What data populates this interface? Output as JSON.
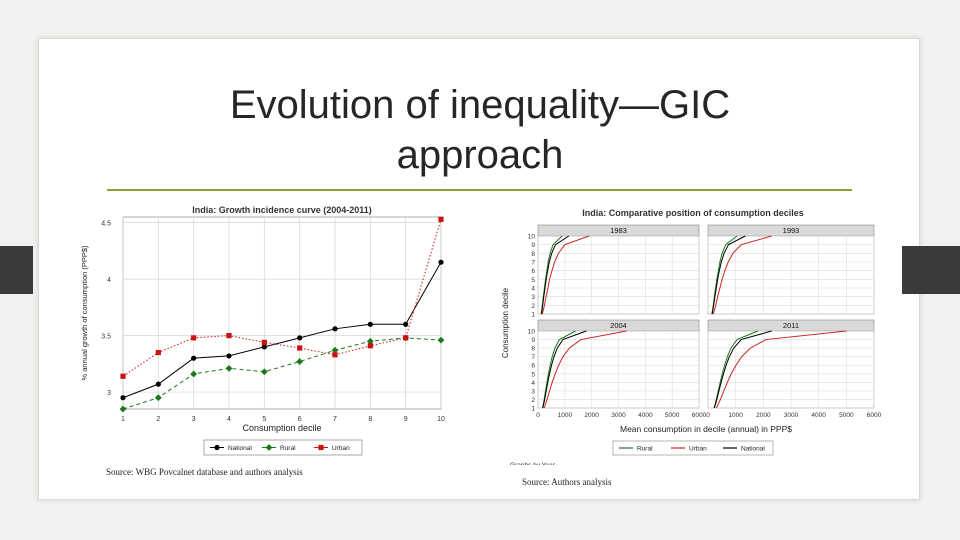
{
  "slide": {
    "title": "Evolution of inequality—GIC approach",
    "accent_color": "#8aa03a",
    "source_left": "Source: WBG Povcalnet database and authors analysis",
    "source_right": "Source: Authors analysis"
  },
  "chart_data": [
    {
      "type": "line",
      "title": "India: Growth incidence curve (2004-2011)",
      "xlabel": "Consumption decile",
      "ylabel": "% annual growth of consumption (PPP$)",
      "x": [
        1,
        2,
        3,
        4,
        5,
        6,
        7,
        8,
        9,
        10
      ],
      "xlim": [
        1,
        10
      ],
      "ylim": [
        2.85,
        4.55
      ],
      "yticks": [
        3,
        3.5,
        4,
        4.5
      ],
      "grid": true,
      "legend_position": "bottom",
      "series": [
        {
          "name": "National",
          "color": "#000000",
          "marker": "circle",
          "dash": "solid",
          "values": [
            2.95,
            3.07,
            3.3,
            3.32,
            3.4,
            3.48,
            3.56,
            3.6,
            3.6,
            4.15
          ]
        },
        {
          "name": "Rural",
          "color": "#1a7a1a",
          "marker": "diamond",
          "dash": "dashed",
          "values": [
            2.85,
            2.95,
            3.16,
            3.21,
            3.18,
            3.27,
            3.37,
            3.45,
            3.48,
            3.46
          ]
        },
        {
          "name": "Urban",
          "color": "#cc1111",
          "marker": "square",
          "dash": "dotted",
          "values": [
            3.14,
            3.35,
            3.48,
            3.5,
            3.44,
            3.39,
            3.33,
            3.41,
            3.48,
            4.53
          ]
        }
      ]
    },
    {
      "type": "line",
      "title": "India: Comparative position of consumption deciles",
      "xlabel": "Mean consumption in decile (annual) in PPP$",
      "ylabel": "Consumption decile",
      "caption": "Graphs by Year",
      "xlim": [
        0,
        6000
      ],
      "ylim": [
        1,
        10
      ],
      "xticks": [
        0,
        1000,
        2000,
        3000,
        4000,
        5000,
        6000
      ],
      "yticks": [
        1,
        2,
        3,
        4,
        5,
        6,
        7,
        8,
        9,
        10
      ],
      "grid": true,
      "legend_position": "bottom",
      "panels": [
        {
          "label": "1983",
          "series": [
            {
              "name": "Rural",
              "color": "#1a7a1a",
              "x": [
                120,
                160,
                200,
                240,
                280,
                330,
                380,
                450,
                560,
                900
              ],
              "values": [
                1,
                2,
                3,
                4,
                5,
                6,
                7,
                8,
                9,
                10
              ]
            },
            {
              "name": "Urban",
              "color": "#cc2222",
              "x": [
                160,
                240,
                300,
                370,
                430,
                520,
                620,
                760,
                1000,
                1900
              ],
              "values": [
                1,
                2,
                3,
                4,
                5,
                6,
                7,
                8,
                9,
                10
              ]
            },
            {
              "name": "National",
              "color": "#000000",
              "x": [
                130,
                175,
                215,
                260,
                305,
                360,
                420,
                510,
                650,
                1150
              ],
              "values": [
                1,
                2,
                3,
                4,
                5,
                6,
                7,
                8,
                9,
                10
              ]
            }
          ]
        },
        {
          "label": "1993",
          "series": [
            {
              "name": "Rural",
              "color": "#1a7a1a",
              "x": [
                140,
                190,
                230,
                275,
                320,
                375,
                430,
                510,
                640,
                1050
              ],
              "values": [
                1,
                2,
                3,
                4,
                5,
                6,
                7,
                8,
                9,
                10
              ]
            },
            {
              "name": "Urban",
              "color": "#cc2222",
              "x": [
                190,
                280,
                350,
                430,
                510,
                610,
                730,
                900,
                1200,
                2300
              ],
              "values": [
                1,
                2,
                3,
                4,
                5,
                6,
                7,
                8,
                9,
                10
              ]
            },
            {
              "name": "National",
              "color": "#000000",
              "x": [
                150,
                205,
                250,
                300,
                350,
                410,
                480,
                580,
                740,
                1350
              ],
              "values": [
                1,
                2,
                3,
                4,
                5,
                6,
                7,
                8,
                9,
                10
              ]
            }
          ]
        },
        {
          "label": "2004",
          "series": [
            {
              "name": "Rural",
              "color": "#1a7a1a",
              "x": [
                170,
                230,
                280,
                335,
                390,
                455,
                530,
                630,
                800,
                1400
              ],
              "values": [
                1,
                2,
                3,
                4,
                5,
                6,
                7,
                8,
                9,
                10
              ]
            },
            {
              "name": "Urban",
              "color": "#cc2222",
              "x": [
                230,
                340,
                430,
                530,
                640,
                770,
                930,
                1170,
                1600,
                3300
              ],
              "values": [
                1,
                2,
                3,
                4,
                5,
                6,
                7,
                8,
                9,
                10
              ]
            },
            {
              "name": "National",
              "color": "#000000",
              "x": [
                180,
                250,
                305,
                365,
                430,
                505,
                595,
                720,
                930,
                1800
              ],
              "values": [
                1,
                2,
                3,
                4,
                5,
                6,
                7,
                8,
                9,
                10
              ]
            }
          ]
        },
        {
          "label": "2011",
          "series": [
            {
              "name": "Rural",
              "color": "#1a7a1a",
              "x": [
                220,
                300,
                370,
                440,
                515,
                600,
                700,
                830,
                1050,
                1800
              ],
              "values": [
                1,
                2,
                3,
                4,
                5,
                6,
                7,
                8,
                9,
                10
              ]
            },
            {
              "name": "Urban",
              "color": "#cc2222",
              "x": [
                300,
                450,
                570,
                700,
                840,
                1010,
                1220,
                1530,
                2100,
                5000
              ],
              "values": [
                1,
                2,
                3,
                4,
                5,
                6,
                7,
                8,
                9,
                10
              ]
            },
            {
              "name": "National",
              "color": "#000000",
              "x": [
                230,
                320,
                395,
                475,
                560,
                655,
                770,
                930,
                1200,
                2300
              ],
              "values": [
                1,
                2,
                3,
                4,
                5,
                6,
                7,
                8,
                9,
                10
              ]
            }
          ]
        }
      ]
    }
  ]
}
